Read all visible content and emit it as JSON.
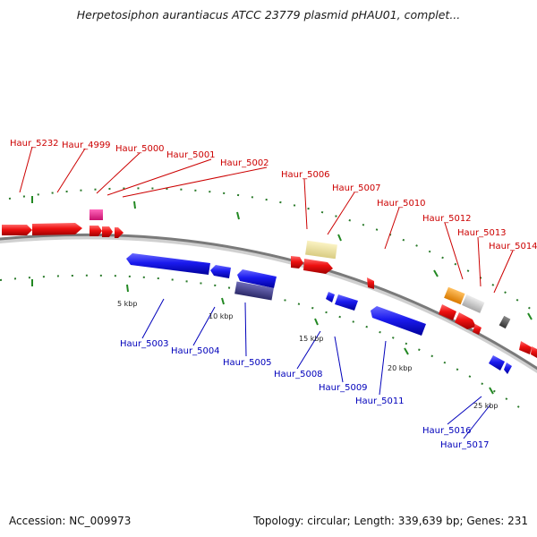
{
  "title": "Herpetosiphon aurantiacus ATCC 23779 plasmid pHAU01, complet...",
  "footer": {
    "accession": "Accession: NC_009973",
    "summary": "Topology: circular; Length: 339,639 bp; Genes: 231"
  },
  "colors": {
    "forward_label": "#cc0000",
    "reverse_label": "#0000bb",
    "forward_gene": "#ee1111",
    "reverse_gene": "#1a1aee",
    "backbone": "#888888",
    "tick": "#228822",
    "tick_label": "#222222"
  },
  "scale_labels": [
    "5 kbp",
    "10 kbp",
    "15 kbp",
    "20 kbp",
    "25 kbp"
  ],
  "forward_labels": [
    "Haur_5232",
    "Haur_4999",
    "Haur_5000",
    "Haur_5001",
    "Haur_5002",
    "Haur_5006",
    "Haur_5007",
    "Haur_5010",
    "Haur_5012",
    "Haur_5013",
    "Haur_5014"
  ],
  "reverse_labels": [
    "Haur_5003",
    "Haur_5004",
    "Haur_5005",
    "Haur_5008",
    "Haur_5009",
    "Haur_5011",
    "Haur_5016",
    "Haur_5017"
  ],
  "features": [
    {
      "name": "gene-forward",
      "color": "#ee1111"
    },
    {
      "name": "gene-reverse",
      "color": "#1a1aee"
    },
    {
      "name": "gene-pink",
      "color": "#e8208a"
    },
    {
      "name": "gene-pale-yellow",
      "color": "#f2e6a0"
    },
    {
      "name": "gene-slate",
      "color": "#3d3a8c"
    },
    {
      "name": "gene-orange",
      "color": "#f39a1a"
    },
    {
      "name": "gene-light-grey",
      "color": "#c8c8c8"
    },
    {
      "name": "gene-dark-grey",
      "color": "#555555"
    }
  ]
}
